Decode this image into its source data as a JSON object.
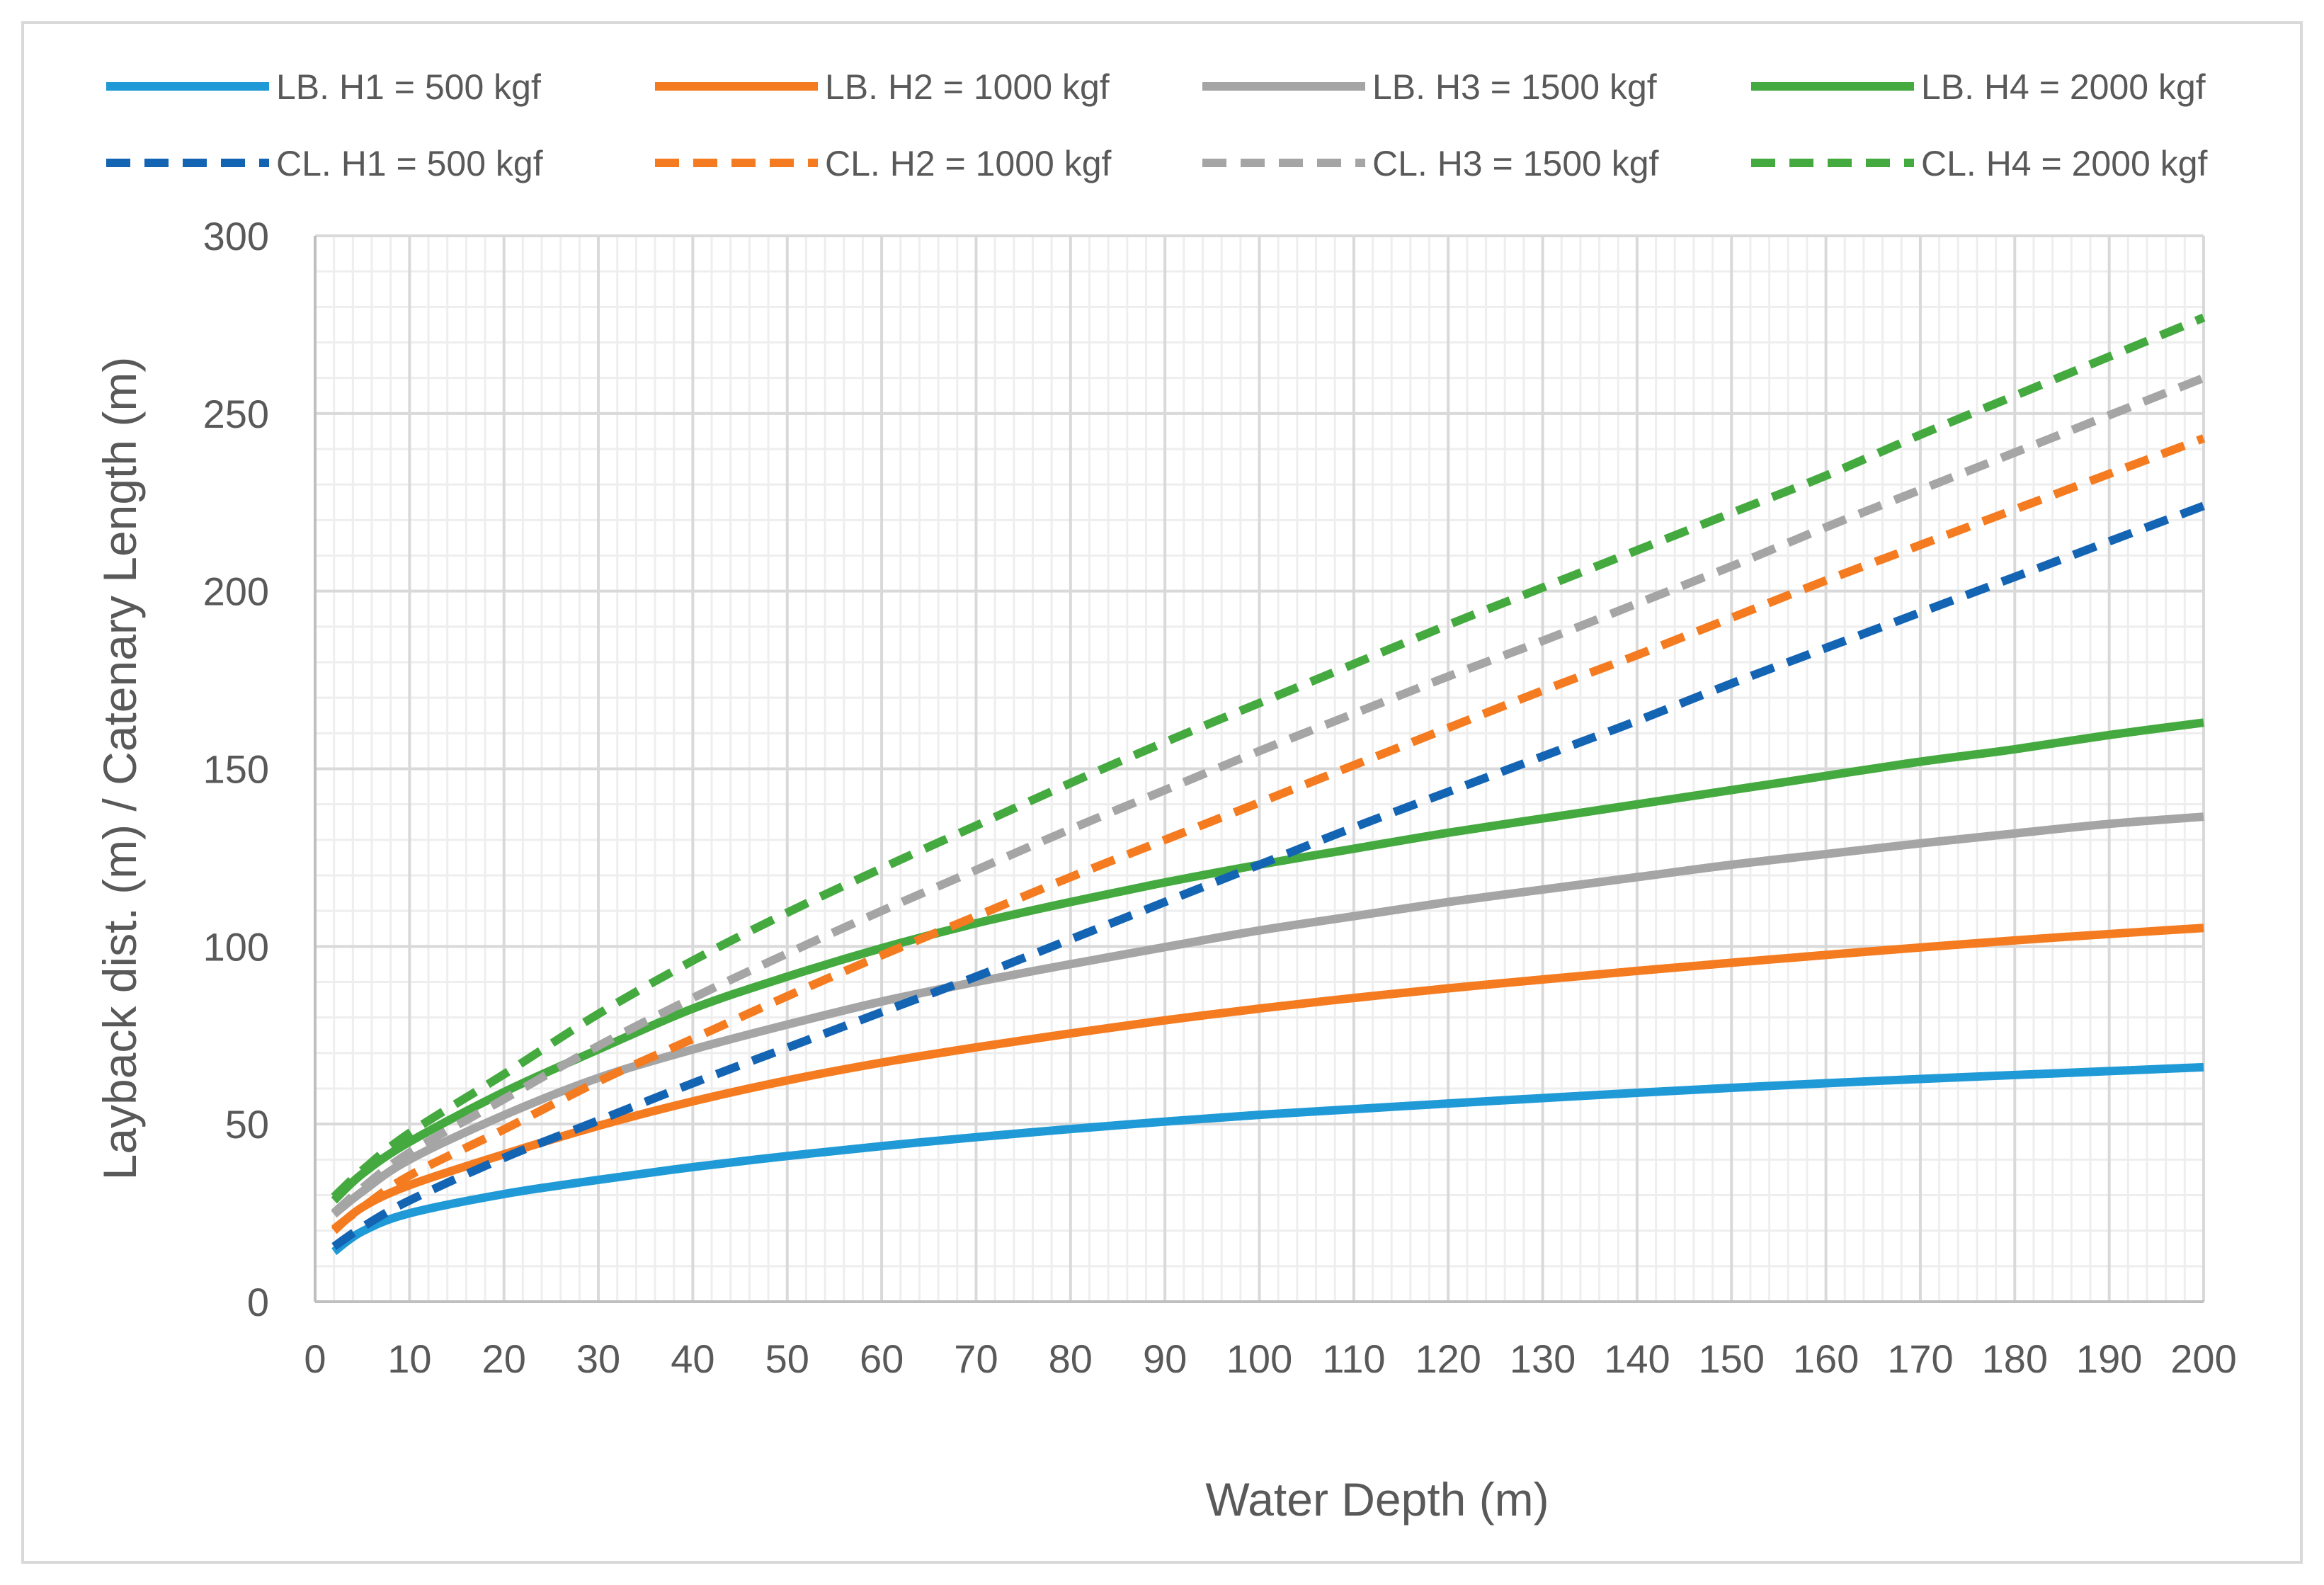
{
  "chart_data": {
    "type": "line",
    "title": "",
    "xlabel": "Water Depth (m)",
    "ylabel": "Layback dist. (m) / Catenary Length (m)",
    "xlim": [
      0,
      200
    ],
    "ylim": [
      0,
      300
    ],
    "x_ticks": [
      0,
      10,
      20,
      30,
      40,
      50,
      60,
      70,
      80,
      90,
      100,
      110,
      120,
      130,
      140,
      150,
      160,
      170,
      180,
      190,
      200
    ],
    "y_ticks": [
      0,
      50,
      100,
      150,
      200,
      250,
      300
    ],
    "x_tick_labels": [
      "0",
      "10",
      "20",
      "30",
      "40",
      "50",
      "60",
      "70",
      "80",
      "90",
      "100",
      "110",
      "120",
      "130",
      "140",
      "150",
      "160",
      "170",
      "180",
      "190",
      "200"
    ],
    "y_tick_labels": [
      "0",
      "50",
      "100",
      "150",
      "200",
      "250",
      "300"
    ],
    "grid": true,
    "legend_position": "top",
    "x": [
      2,
      5,
      10,
      20,
      30,
      40,
      50,
      60,
      70,
      80,
      90,
      100,
      110,
      120,
      130,
      140,
      150,
      160,
      170,
      180,
      190,
      200
    ],
    "series": [
      {
        "name": "LB. H1 = 500 kgf",
        "color": "#1f9ad6",
        "dash": "solid",
        "values": [
          14.1,
          19.8,
          24.9,
          30.3,
          34.3,
          37.9,
          41.0,
          43.8,
          46.3,
          48.6,
          50.7,
          52.6,
          54.2,
          55.8,
          57.3,
          58.8,
          60.2,
          61.5,
          62.7,
          63.8,
          64.9,
          66.0
        ]
      },
      {
        "name": "LB. H2 = 1000 kgf",
        "color": "#f47b20",
        "dash": "solid",
        "values": [
          20.0,
          26.6,
          32.8,
          41.5,
          49.5,
          56.4,
          62.3,
          67.3,
          71.6,
          75.5,
          79.2,
          82.5,
          85.5,
          88.2,
          90.7,
          93.1,
          95.4,
          97.6,
          99.7,
          101.7,
          103.5,
          105.2
        ]
      },
      {
        "name": "LB. H3 = 1500 kgf",
        "color": "#a5a5a5",
        "dash": "solid",
        "values": [
          24.6,
          31.0,
          40.0,
          52.5,
          63.0,
          71.0,
          78.0,
          84.5,
          90.0,
          95.0,
          99.8,
          104.5,
          108.5,
          112.5,
          116.0,
          119.5,
          123.0,
          126.0,
          129.0,
          131.8,
          134.5,
          136.5
        ]
      },
      {
        "name": "LB. H4 = 2000 kgf",
        "color": "#44aa3f",
        "dash": "solid",
        "values": [
          28.5,
          36.0,
          45.0,
          59.0,
          71.0,
          82.5,
          91.5,
          99.5,
          106.5,
          112.5,
          118.0,
          123.0,
          127.5,
          132.0,
          136.0,
          140.0,
          144.0,
          148.0,
          152.0,
          155.5,
          159.5,
          163.0
        ]
      },
      {
        "name": "CL. H1 = 500 kgf",
        "color": "#1464b4",
        "dash": "dashed",
        "values": [
          15.5,
          21.0,
          28.5,
          40.5,
          51.0,
          61.5,
          71.5,
          81.5,
          91.5,
          102.0,
          112.5,
          123.0,
          133.5,
          143.5,
          153.5,
          163.5,
          174.0,
          184.0,
          194.0,
          204.0,
          214.0,
          224.0
        ]
      },
      {
        "name": "CL. H2 = 1000 kgf",
        "color": "#f47b20",
        "dash": "dashed",
        "values": [
          20.5,
          26.5,
          35.5,
          48.5,
          62.0,
          74.0,
          86.0,
          97.5,
          108.5,
          119.5,
          130.0,
          140.5,
          151.0,
          161.5,
          172.0,
          182.0,
          192.5,
          203.0,
          213.0,
          223.0,
          233.0,
          243.0
        ]
      },
      {
        "name": "CL. H3 = 1500 kgf",
        "color": "#a5a5a5",
        "dash": "dashed",
        "values": [
          25.0,
          32.0,
          42.0,
          57.0,
          72.0,
          85.5,
          98.0,
          110.0,
          121.5,
          133.0,
          144.0,
          155.0,
          165.5,
          176.0,
          186.0,
          196.5,
          207.0,
          218.0,
          228.5,
          239.0,
          249.5,
          260.0
        ]
      },
      {
        "name": "CL. H4 = 2000 kgf",
        "color": "#44aa3f",
        "dash": "dashed",
        "values": [
          29.5,
          37.0,
          47.5,
          64.0,
          81.0,
          96.0,
          109.5,
          122.0,
          134.0,
          146.0,
          157.5,
          168.5,
          179.5,
          190.5,
          201.0,
          211.5,
          222.0,
          232.5,
          244.0,
          255.0,
          266.0,
          277.0
        ]
      }
    ]
  }
}
